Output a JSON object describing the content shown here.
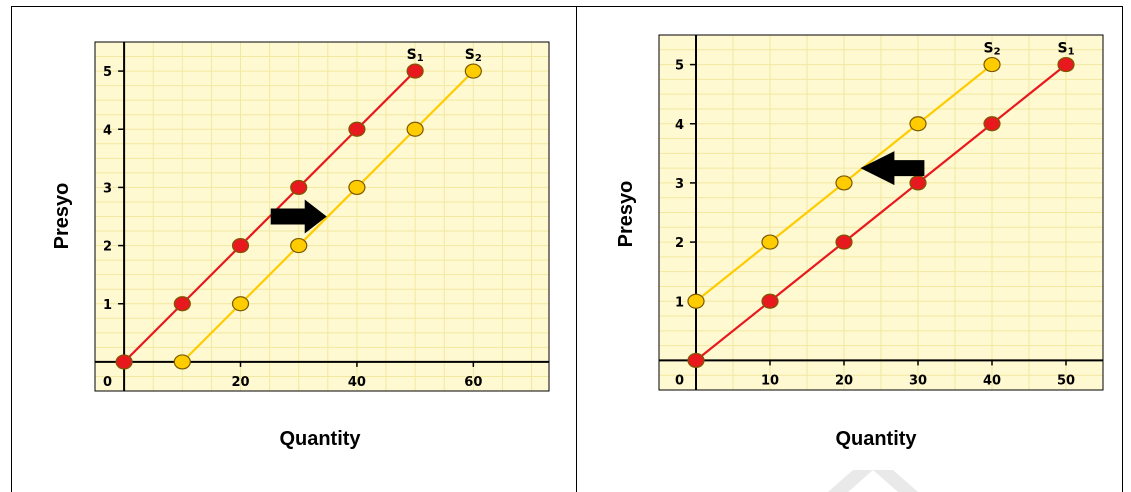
{
  "colors": {
    "plot_bg": "#fff9d2",
    "grid": "#f2e8a0",
    "red": "#e8191e",
    "yellow": "#ffcc00",
    "point_stroke": "#7a5a00"
  },
  "chart_data": [
    {
      "type": "line",
      "ylabel": "Presyo",
      "xlabel": "Quantity",
      "xlim": [
        -5,
        73
      ],
      "ylim": [
        -0.5,
        5.5
      ],
      "x_ticks": [
        "20",
        "40",
        "60"
      ],
      "x_tick_values": [
        20,
        40,
        60
      ],
      "y_ticks": [
        "1",
        "2",
        "3",
        "4",
        "5"
      ],
      "y_tick_values": [
        1,
        2,
        3,
        4,
        5
      ],
      "origin_label": "0",
      "grid": true,
      "series": [
        {
          "name": "S1",
          "color": "red",
          "x": [
            0,
            10,
            20,
            30,
            40,
            50
          ],
          "y": [
            0,
            1,
            2,
            3,
            4,
            5
          ]
        },
        {
          "name": "S2",
          "color": "yellow",
          "x": [
            10,
            20,
            30,
            40,
            50,
            60
          ],
          "y": [
            0,
            1,
            2,
            3,
            4,
            5
          ]
        }
      ],
      "arrow": {
        "direction": "right",
        "x": 30,
        "y": 2.5
      }
    },
    {
      "type": "line",
      "ylabel": "Presyo",
      "xlabel": "Quantity",
      "xlim": [
        -5,
        55
      ],
      "ylim": [
        -0.5,
        5.5
      ],
      "x_ticks": [
        "10",
        "20",
        "30",
        "40",
        "50"
      ],
      "x_tick_values": [
        10,
        20,
        30,
        40,
        50
      ],
      "y_ticks": [
        "1",
        "2",
        "3",
        "4",
        "5"
      ],
      "y_tick_values": [
        1,
        2,
        3,
        4,
        5
      ],
      "origin_label": "0",
      "grid": true,
      "series": [
        {
          "name": "S1",
          "color": "red",
          "x": [
            0,
            10,
            20,
            30,
            40,
            50
          ],
          "y": [
            0,
            1,
            2,
            3,
            4,
            5
          ]
        },
        {
          "name": "S2",
          "color": "yellow",
          "x": [
            0,
            10,
            20,
            30,
            40
          ],
          "y": [
            1,
            2,
            3,
            4,
            5
          ]
        }
      ],
      "arrow": {
        "direction": "left",
        "x": 26,
        "y": 3.25
      }
    }
  ]
}
